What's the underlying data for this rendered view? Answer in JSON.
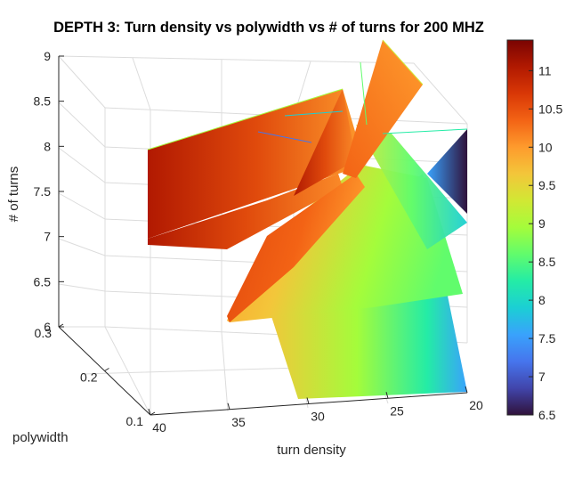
{
  "chart_data": {
    "type": "surface3d",
    "title": "DEPTH 3: Turn density vs polywidth vs # of turns for 200 MHZ",
    "xlabel": "turn density",
    "ylabel": "polywidth",
    "zlabel": "# of turns",
    "xticks": [
      "40",
      "35",
      "30",
      "25",
      "20"
    ],
    "yticks": [
      "0.1",
      "0.2",
      "0.3"
    ],
    "zticks": [
      "6",
      "6.5",
      "7",
      "7.5",
      "8",
      "8.5",
      "9"
    ],
    "xlim": [
      20,
      40
    ],
    "ylim": [
      0.1,
      0.3
    ],
    "zlim": [
      6,
      9
    ],
    "grid": true,
    "colormap": "turbo",
    "colorbar": {
      "location": "right",
      "ticks": [
        "6.5",
        "7",
        "7.5",
        "8",
        "8.5",
        "9",
        "9.5",
        "10",
        "10.5",
        "11"
      ],
      "clim": [
        6.5,
        11.4
      ]
    }
  },
  "colors": {
    "turbo": [
      "#30123b",
      "#4145ab",
      "#4675ed",
      "#39a2fc",
      "#1bcfd4",
      "#24eca6",
      "#61fc6c",
      "#a4fc3b",
      "#d1e834",
      "#f3c63a",
      "#fe9b2d",
      "#f36315",
      "#d93806",
      "#b11901",
      "#7a0402"
    ]
  }
}
